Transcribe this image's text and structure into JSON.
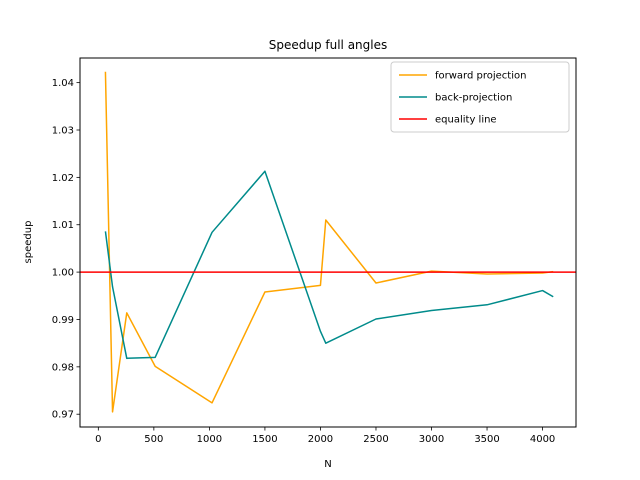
{
  "chart_data": {
    "type": "line",
    "title": "Speedup full angles",
    "xlabel": "N",
    "ylabel": "speedup",
    "xlim": [
      -165,
      4301
    ],
    "ylim": [
      0.9673,
      1.0452
    ],
    "xticks": [
      0,
      500,
      1000,
      1500,
      2000,
      2500,
      3000,
      3500,
      4000
    ],
    "xtick_labels": [
      "0",
      "500",
      "1000",
      "1500",
      "2000",
      "2500",
      "3000",
      "3500",
      "4000"
    ],
    "yticks": [
      0.97,
      0.98,
      0.99,
      1.0,
      1.01,
      1.02,
      1.03,
      1.04
    ],
    "ytick_labels": [
      "0.97",
      "0.98",
      "0.99",
      "1.00",
      "1.01",
      "1.02",
      "1.03",
      "1.04"
    ],
    "legend_position": "top-right",
    "grid": false,
    "series": [
      {
        "name": "forward projection",
        "color": "#ffa500",
        "x": [
          64,
          128,
          256,
          512,
          1024,
          1500,
          2000,
          2048,
          2500,
          3000,
          3500,
          4000,
          4096
        ],
        "y": [
          1.0423,
          0.9705,
          0.9914,
          0.9801,
          0.9724,
          0.9958,
          0.9972,
          1.011,
          0.9977,
          1.0002,
          0.9996,
          0.9998,
          1.0001
        ]
      },
      {
        "name": "back-projection",
        "color": "#008b8b",
        "x": [
          64,
          128,
          256,
          512,
          1024,
          1500,
          2000,
          2048,
          2500,
          3000,
          3500,
          4000,
          4096
        ],
        "y": [
          1.0086,
          0.9969,
          0.9818,
          0.982,
          1.0084,
          1.0213,
          0.9875,
          0.985,
          0.9901,
          0.9919,
          0.9931,
          0.9961,
          0.9948
        ]
      },
      {
        "name": "equality line",
        "color": "#ff0000",
        "y_constant": 1.0
      }
    ]
  }
}
